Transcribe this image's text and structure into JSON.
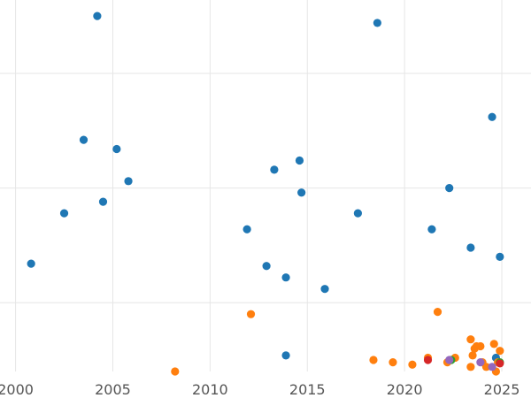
{
  "chart_data": {
    "type": "scatter",
    "title": "",
    "xlabel": "",
    "ylabel": "",
    "xlim": [
      1999.2,
      2026.5
    ],
    "ylim": [
      0,
      1.62
    ],
    "x_ticks": [
      2000,
      2005,
      2010,
      2015,
      2020,
      2025
    ],
    "x_tick_labels": [
      "2000",
      "2005",
      "2010",
      "2015",
      "2020",
      "2025"
    ],
    "y_gridlines": [
      0.3,
      0.8,
      1.3
    ],
    "grid": true,
    "legend": "none",
    "series": [
      {
        "color": "#1f77b4",
        "points": [
          [
            2000.8,
            0.47
          ],
          [
            2002.5,
            0.69
          ],
          [
            2003.5,
            1.01
          ],
          [
            2004.2,
            1.55
          ],
          [
            2004.5,
            0.74
          ],
          [
            2005.2,
            0.97
          ],
          [
            2005.8,
            0.83
          ],
          [
            2011.9,
            0.62
          ],
          [
            2012.9,
            0.46
          ],
          [
            2013.3,
            0.88
          ],
          [
            2013.9,
            0.41
          ],
          [
            2013.9,
            0.07
          ],
          [
            2014.6,
            0.92
          ],
          [
            2014.7,
            0.78
          ],
          [
            2015.9,
            0.36
          ],
          [
            2017.6,
            0.69
          ],
          [
            2018.6,
            1.52
          ],
          [
            2021.4,
            0.62
          ],
          [
            2022.3,
            0.8
          ],
          [
            2023.4,
            0.54
          ],
          [
            2024.5,
            1.11
          ],
          [
            2024.9,
            0.5
          ],
          [
            2024.7,
            0.06
          ]
        ]
      },
      {
        "color": "#ff7f0e",
        "points": [
          [
            2008.2,
            0.0
          ],
          [
            2012.1,
            0.25
          ],
          [
            2018.4,
            0.05
          ],
          [
            2019.4,
            0.04
          ],
          [
            2020.4,
            0.03
          ],
          [
            2021.2,
            0.06
          ],
          [
            2021.7,
            0.26
          ],
          [
            2022.2,
            0.04
          ],
          [
            2022.6,
            0.06
          ],
          [
            2023.4,
            0.14
          ],
          [
            2023.4,
            0.02
          ],
          [
            2023.5,
            0.07
          ],
          [
            2023.6,
            0.1
          ],
          [
            2023.7,
            0.11
          ],
          [
            2023.9,
            0.11
          ],
          [
            2024.0,
            0.04
          ],
          [
            2024.2,
            0.02
          ],
          [
            2024.6,
            0.12
          ],
          [
            2024.7,
            0.0
          ],
          [
            2024.9,
            0.09
          ],
          [
            2024.8,
            0.04
          ]
        ]
      },
      {
        "color": "#2ca02c",
        "points": [
          [
            2022.4,
            0.05
          ],
          [
            2024.9,
            0.04
          ]
        ]
      },
      {
        "color": "#d62728",
        "points": [
          [
            2021.2,
            0.05
          ],
          [
            2024.9,
            0.035
          ]
        ]
      },
      {
        "color": "#9467bd",
        "points": [
          [
            2022.3,
            0.05
          ],
          [
            2023.9,
            0.04
          ],
          [
            2024.5,
            0.02
          ]
        ]
      }
    ]
  }
}
